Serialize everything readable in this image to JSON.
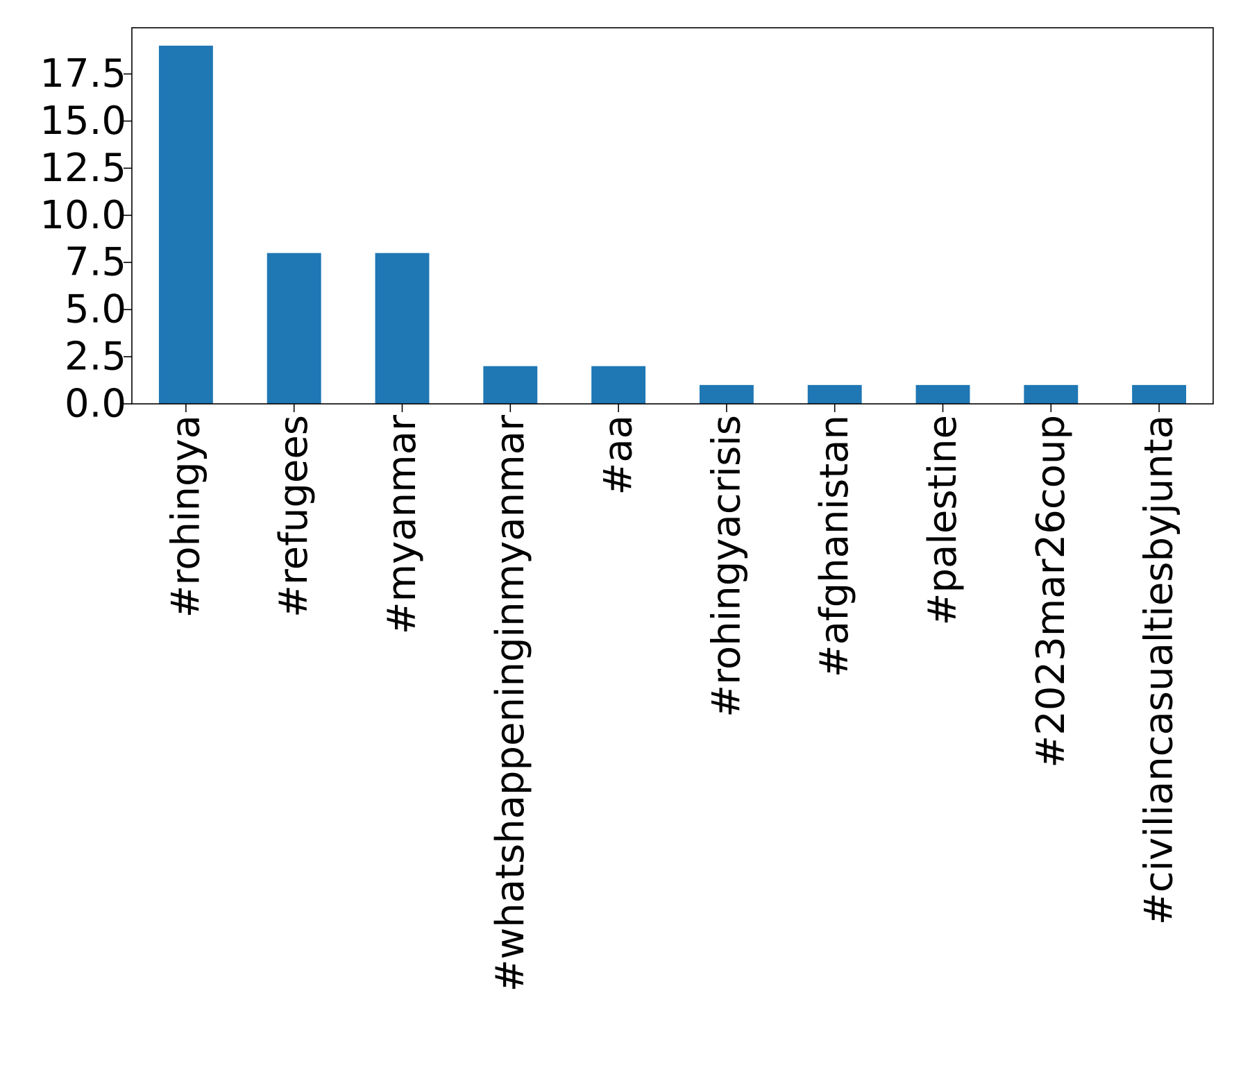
{
  "chart_data": {
    "type": "bar",
    "title": "",
    "xlabel": "",
    "ylabel": "",
    "categories": [
      "#rohingya",
      "#refugees",
      "#myanmar",
      "#whatshappeninginmyanmar",
      "#aa",
      "#rohingyacrisis",
      "#afghanistan",
      "#palestine",
      "#2023mar26coup",
      "#civiliancasualtiesbyjunta"
    ],
    "values": [
      19,
      8,
      8,
      2,
      2,
      1,
      1,
      1,
      1,
      1
    ],
    "ylim": [
      0,
      19.95
    ],
    "yticks": [
      0.0,
      2.5,
      5.0,
      7.5,
      10.0,
      12.5,
      15.0,
      17.5
    ],
    "ytick_labels": [
      "0.0",
      "2.5",
      "5.0",
      "7.5",
      "10.0",
      "12.5",
      "15.0",
      "17.5"
    ],
    "grid": false,
    "legend": "none",
    "colors": {
      "bar": "#1f77b4",
      "axes": "#000000",
      "background": "#ffffff"
    }
  }
}
